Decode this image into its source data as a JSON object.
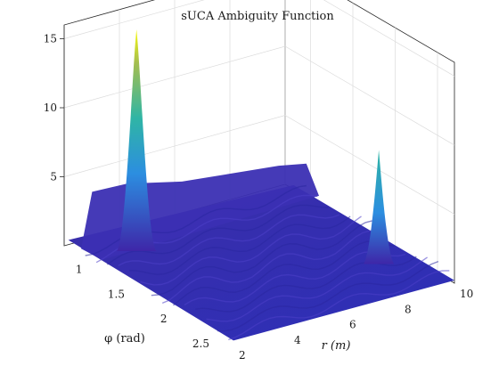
{
  "chart_data": {
    "type": "surface",
    "title": "sUCA Ambiguity Function",
    "xlabel": "r (m)",
    "ylabel": "φ (rad)",
    "zlabel": "",
    "xlim": [
      2,
      10
    ],
    "ylim": [
      0.7,
      2.7
    ],
    "zlim": [
      0,
      16
    ],
    "xticks": [
      2,
      4,
      6,
      8,
      10
    ],
    "yticks": [
      1,
      1.5,
      2,
      2.5
    ],
    "zticks": [
      5,
      10,
      15
    ],
    "grid": true,
    "colormap": "parula",
    "colors": {
      "low": "#3e26a8",
      "mid": "#2fb5a5",
      "high": "#f9fb0e"
    },
    "peaks": [
      {
        "r": 3.7,
        "phi": 1.0,
        "value": 15.8
      },
      {
        "r": 9.1,
        "phi": 2.1,
        "value": 8.0
      }
    ]
  }
}
